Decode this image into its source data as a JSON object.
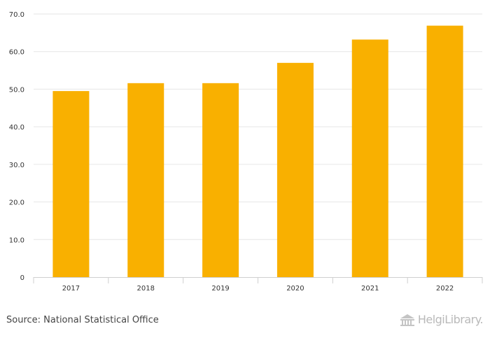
{
  "chart_data": {
    "type": "bar",
    "categories": [
      "2017",
      "2018",
      "2019",
      "2020",
      "2021",
      "2022"
    ],
    "values": [
      49.5,
      51.6,
      51.6,
      57.0,
      63.2,
      66.9
    ],
    "yticks": [
      "0",
      "10.0",
      "20.0",
      "30.0",
      "40.0",
      "50.0",
      "60.0",
      "70.0"
    ],
    "ylim": [
      0,
      70
    ],
    "grid": true,
    "bar_color": "#F9B000",
    "grid_color": "#E6E6E6"
  },
  "footer": {
    "source": "Source: National Statistical Office",
    "brand": "HelgiLibrary."
  }
}
